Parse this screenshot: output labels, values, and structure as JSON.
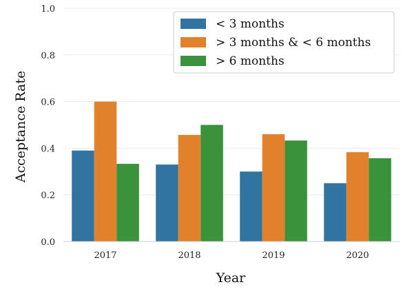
{
  "chart_data": {
    "type": "bar",
    "xlabel": "Year",
    "ylabel": "Acceptance Rate",
    "categories": [
      "2017",
      "2018",
      "2019",
      "2020"
    ],
    "ylim": [
      0,
      1.0
    ],
    "yticks": [
      "0.0",
      "0.2",
      "0.4",
      "0.6",
      "0.8",
      "1.0"
    ],
    "grid": true,
    "legend_position": "top-right",
    "series": [
      {
        "name": "< 3 months",
        "color": "#3274a1",
        "values": [
          0.39,
          0.33,
          0.3,
          0.25
        ]
      },
      {
        "name": "> 3 months & < 6 months",
        "color": "#e1812c",
        "values": [
          0.6,
          0.457,
          0.46,
          0.383
        ]
      },
      {
        "name": "> 6 months",
        "color": "#3a923a",
        "values": [
          0.333,
          0.5,
          0.433,
          0.357
        ]
      }
    ]
  }
}
